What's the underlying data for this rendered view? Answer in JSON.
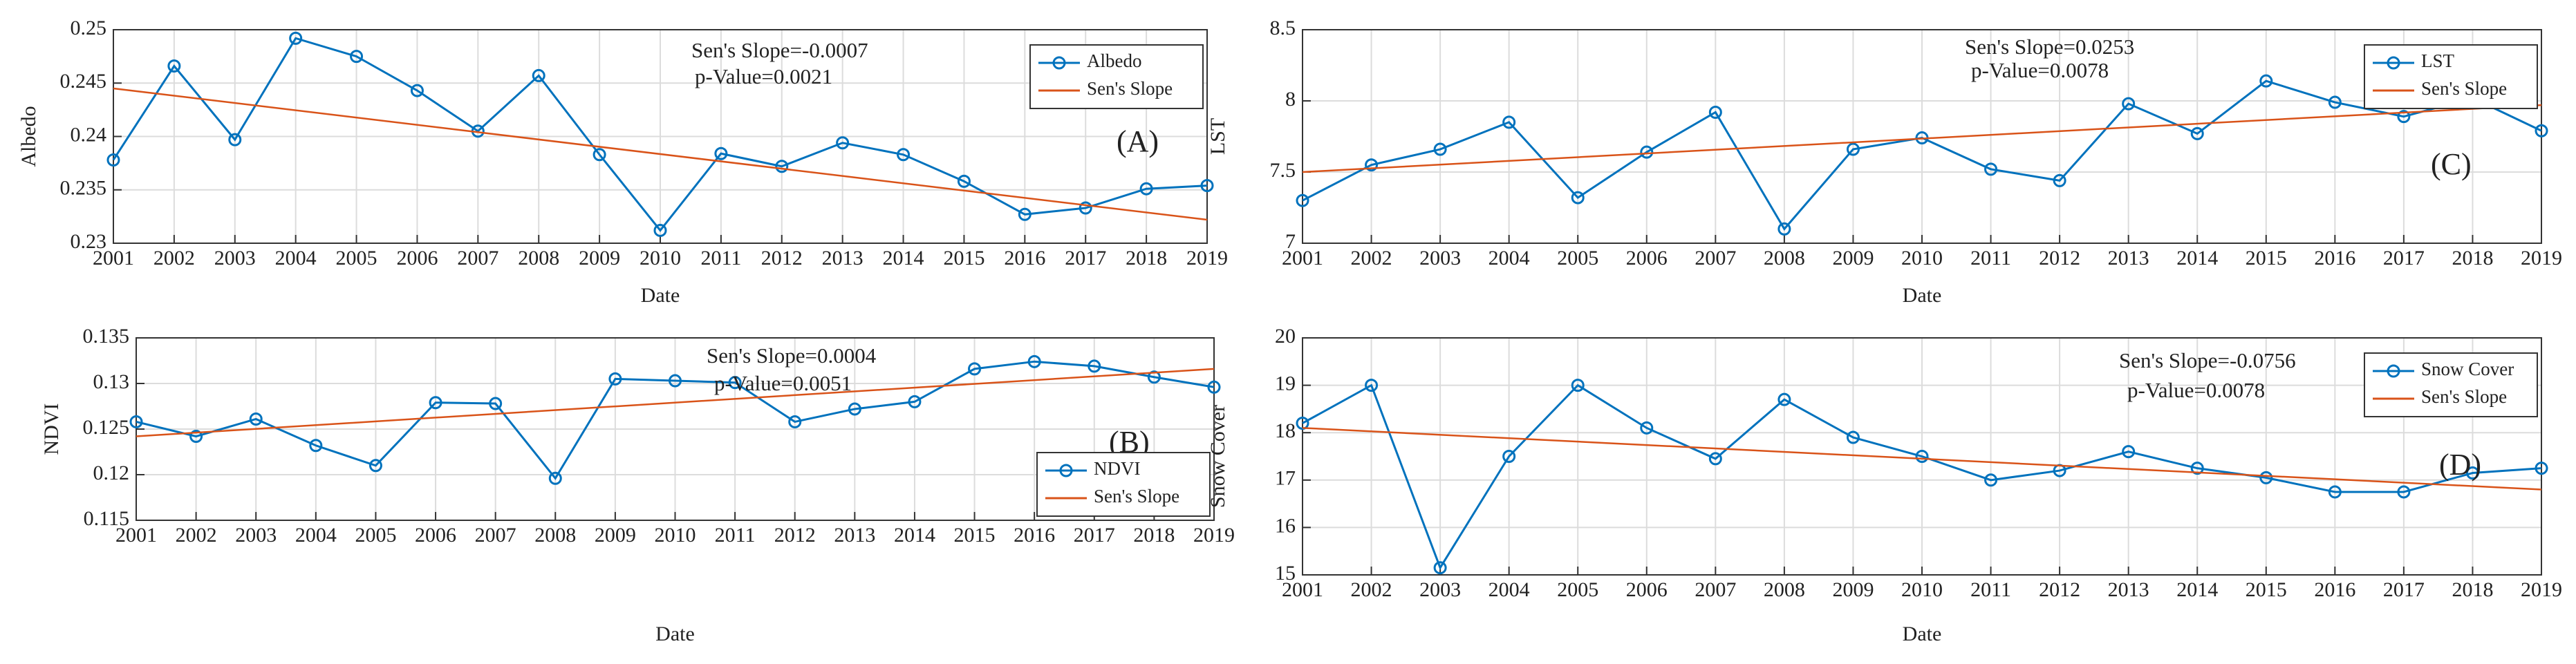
{
  "chart_data": [
    {
      "type": "line",
      "xlabel": "Date",
      "ylabel": "Albedo",
      "x": [
        2001,
        2002,
        2003,
        2004,
        2005,
        2006,
        2007,
        2008,
        2009,
        2010,
        2011,
        2012,
        2013,
        2014,
        2015,
        2016,
        2017,
        2018,
        2019
      ],
      "series": [
        {
          "name": "Albedo",
          "color": "#0072bd",
          "values": [
            0.2378,
            0.2466,
            0.2397,
            0.2492,
            0.2475,
            0.2443,
            0.2405,
            0.2457,
            0.2383,
            0.2312,
            0.2384,
            0.2372,
            0.2394,
            0.2383,
            0.2358,
            0.2327,
            0.2333,
            0.2351,
            0.2354
          ]
        },
        {
          "name": "Sen's Slope",
          "color": "#d95319",
          "x": [
            2001,
            2019
          ],
          "values": [
            0.2445,
            0.2322
          ]
        }
      ],
      "xlim": [
        2001,
        2019
      ],
      "xticks": [
        2001,
        2002,
        2003,
        2004,
        2005,
        2006,
        2007,
        2008,
        2009,
        2010,
        2011,
        2012,
        2013,
        2014,
        2015,
        2016,
        2017,
        2018,
        2019
      ],
      "ylim": [
        0.23,
        0.25
      ],
      "yticks": [
        0.23,
        0.235,
        0.24,
        0.245,
        0.25
      ],
      "annotations": [
        "Sen's Slope=-0.0007",
        "p-Value=0.0021",
        "(A)"
      ],
      "grid": true,
      "legend": "upper right"
    },
    {
      "type": "line",
      "xlabel": "Date",
      "ylabel": "LST",
      "x": [
        2001,
        2002,
        2003,
        2004,
        2005,
        2006,
        2007,
        2008,
        2009,
        2010,
        2011,
        2012,
        2013,
        2014,
        2015,
        2016,
        2017,
        2018,
        2019
      ],
      "series": [
        {
          "name": "LST",
          "color": "#0072bd",
          "values": [
            7.3,
            7.55,
            7.66,
            7.85,
            7.32,
            7.64,
            7.92,
            7.1,
            7.66,
            7.74,
            7.52,
            7.44,
            7.98,
            7.77,
            8.14,
            7.99,
            7.89,
            8.02,
            7.79
          ]
        },
        {
          "name": "Sen's Slope",
          "color": "#d95319",
          "x": [
            2001,
            2019
          ],
          "values": [
            7.5,
            7.97
          ]
        }
      ],
      "xlim": [
        2001,
        2019
      ],
      "xticks": [
        2001,
        2002,
        2003,
        2004,
        2005,
        2006,
        2007,
        2008,
        2009,
        2010,
        2011,
        2012,
        2013,
        2014,
        2015,
        2016,
        2017,
        2018,
        2019
      ],
      "ylim": [
        7,
        8.5
      ],
      "yticks": [
        7,
        7.5,
        8,
        8.5
      ],
      "annotations": [
        "Sen's Slope=0.0253",
        "p-Value=0.0078",
        "(C)"
      ],
      "grid": true,
      "legend": "upper right"
    },
    {
      "type": "line",
      "xlabel": "Date",
      "ylabel": "NDVI",
      "x": [
        2001,
        2002,
        2003,
        2004,
        2005,
        2006,
        2007,
        2008,
        2009,
        2010,
        2011,
        2012,
        2013,
        2014,
        2015,
        2016,
        2017,
        2018,
        2019
      ],
      "series": [
        {
          "name": "NDVI",
          "color": "#0072bd",
          "values": [
            0.1258,
            0.1242,
            0.1261,
            0.1232,
            0.121,
            0.1279,
            0.1278,
            0.1196,
            0.1305,
            0.1303,
            0.1301,
            0.1258,
            0.1272,
            0.128,
            0.1316,
            0.1324,
            0.1319,
            0.1307,
            0.1296
          ]
        },
        {
          "name": "Sen's Slope",
          "color": "#d95319",
          "x": [
            2001,
            2019
          ],
          "values": [
            0.1242,
            0.1316
          ]
        }
      ],
      "xlim": [
        2001,
        2019
      ],
      "xticks": [
        2001,
        2002,
        2003,
        2004,
        2005,
        2006,
        2007,
        2008,
        2009,
        2010,
        2011,
        2012,
        2013,
        2014,
        2015,
        2016,
        2017,
        2018,
        2019
      ],
      "ylim": [
        0.115,
        0.135
      ],
      "yticks": [
        0.115,
        0.12,
        0.125,
        0.13,
        0.135
      ],
      "annotations": [
        "Sen's Slope=0.0004",
        "p-Value=0.0051",
        "(B)"
      ],
      "grid": true,
      "legend": "lower right"
    },
    {
      "type": "line",
      "xlabel": "Date",
      "ylabel": "Snow Cover",
      "x": [
        2001,
        2002,
        2003,
        2004,
        2005,
        2006,
        2007,
        2008,
        2009,
        2010,
        2011,
        2012,
        2013,
        2014,
        2015,
        2016,
        2017,
        2018,
        2019
      ],
      "series": [
        {
          "name": "Snow Cover",
          "color": "#0072bd",
          "values": [
            18.2,
            19.0,
            15.15,
            17.5,
            19.0,
            18.1,
            17.45,
            18.7,
            17.9,
            17.5,
            17.0,
            17.2,
            17.6,
            17.25,
            17.05,
            16.75,
            16.75,
            17.15,
            17.25
          ]
        },
        {
          "name": "Sen's Slope",
          "color": "#d95319",
          "x": [
            2001,
            2019
          ],
          "values": [
            18.1,
            16.8
          ]
        }
      ],
      "xlim": [
        2001,
        2019
      ],
      "xticks": [
        2001,
        2002,
        2003,
        2004,
        2005,
        2006,
        2007,
        2008,
        2009,
        2010,
        2011,
        2012,
        2013,
        2014,
        2015,
        2016,
        2017,
        2018,
        2019
      ],
      "ylim": [
        15,
        20
      ],
      "yticks": [
        15,
        16,
        17,
        18,
        19,
        20
      ],
      "annotations": [
        "Sen's Slope=-0.0756",
        "p-Value=0.0078",
        "(D)"
      ],
      "grid": true,
      "legend": "upper right"
    }
  ]
}
